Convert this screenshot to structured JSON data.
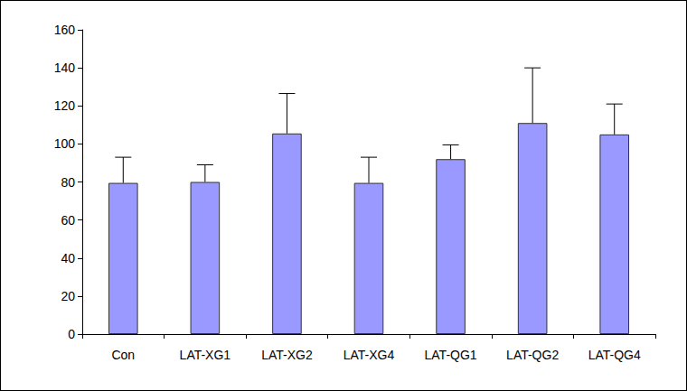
{
  "chart_data": {
    "type": "bar",
    "categories": [
      "Con",
      "LAT-XG1",
      "LAT-XG2",
      "LAT-XG4",
      "LAT-QG1",
      "LAT-QG2",
      "LAT-QG4"
    ],
    "values": [
      79.5,
      80,
      105.5,
      79.5,
      92,
      111,
      105
    ],
    "errors": [
      13.5,
      9,
      21,
      13.5,
      7.5,
      29,
      16
    ],
    "color": "#9999ff",
    "ylim": [
      0,
      160
    ],
    "yticks": [
      0,
      20,
      40,
      60,
      80,
      100,
      120,
      140,
      160
    ],
    "grid": false
  }
}
